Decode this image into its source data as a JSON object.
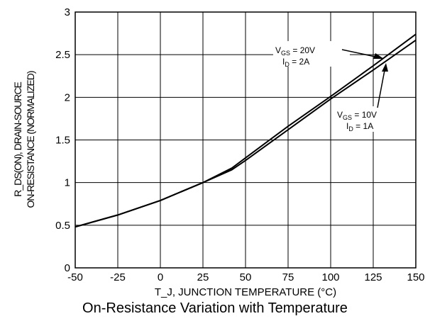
{
  "chart_data": {
    "type": "line",
    "title": "On-Resistance Variation with Temperature",
    "xlabel": "T_J, JUNCTION TEMPERATURE (°C)",
    "ylabel": {
      "line1": "R_DS(ON), DRAIN-SOURCE",
      "line2": "ON-RESISTANCE (NORMALIZED)"
    },
    "xlim": [
      -50,
      150
    ],
    "ylim": [
      0,
      3
    ],
    "grid": true,
    "x_ticks": [
      -50,
      -25,
      0,
      25,
      50,
      75,
      100,
      125,
      150
    ],
    "y_ticks": [
      0,
      0.5,
      1,
      1.5,
      2,
      2.5,
      3
    ],
    "series": [
      {
        "name": "V_GS = 20V, I_D = 2A",
        "x": [
          -50,
          -25,
          0,
          25,
          42,
          50,
          75,
          100,
          125,
          150
        ],
        "y": [
          0.48,
          0.62,
          0.79,
          1.0,
          1.17,
          1.29,
          1.66,
          2.01,
          2.37,
          2.74
        ]
      },
      {
        "name": "V_GS = 10V, I_D = 1A",
        "x": [
          -50,
          -25,
          0,
          25,
          42,
          50,
          75,
          100,
          125,
          150
        ],
        "y": [
          0.48,
          0.62,
          0.79,
          1.0,
          1.15,
          1.26,
          1.62,
          1.98,
          2.32,
          2.67
        ]
      }
    ],
    "annotations": [
      {
        "vgs_label": "V",
        "vgs_sub": "GS",
        "vgs_val": " = 20V",
        "id_label": "I",
        "id_sub": "D",
        "id_val": " = 2A"
      },
      {
        "vgs_label": "V",
        "vgs_sub": "GS",
        "vgs_val": " = 10V",
        "id_label": "I",
        "id_sub": "D",
        "id_val": " = 1A"
      }
    ]
  }
}
